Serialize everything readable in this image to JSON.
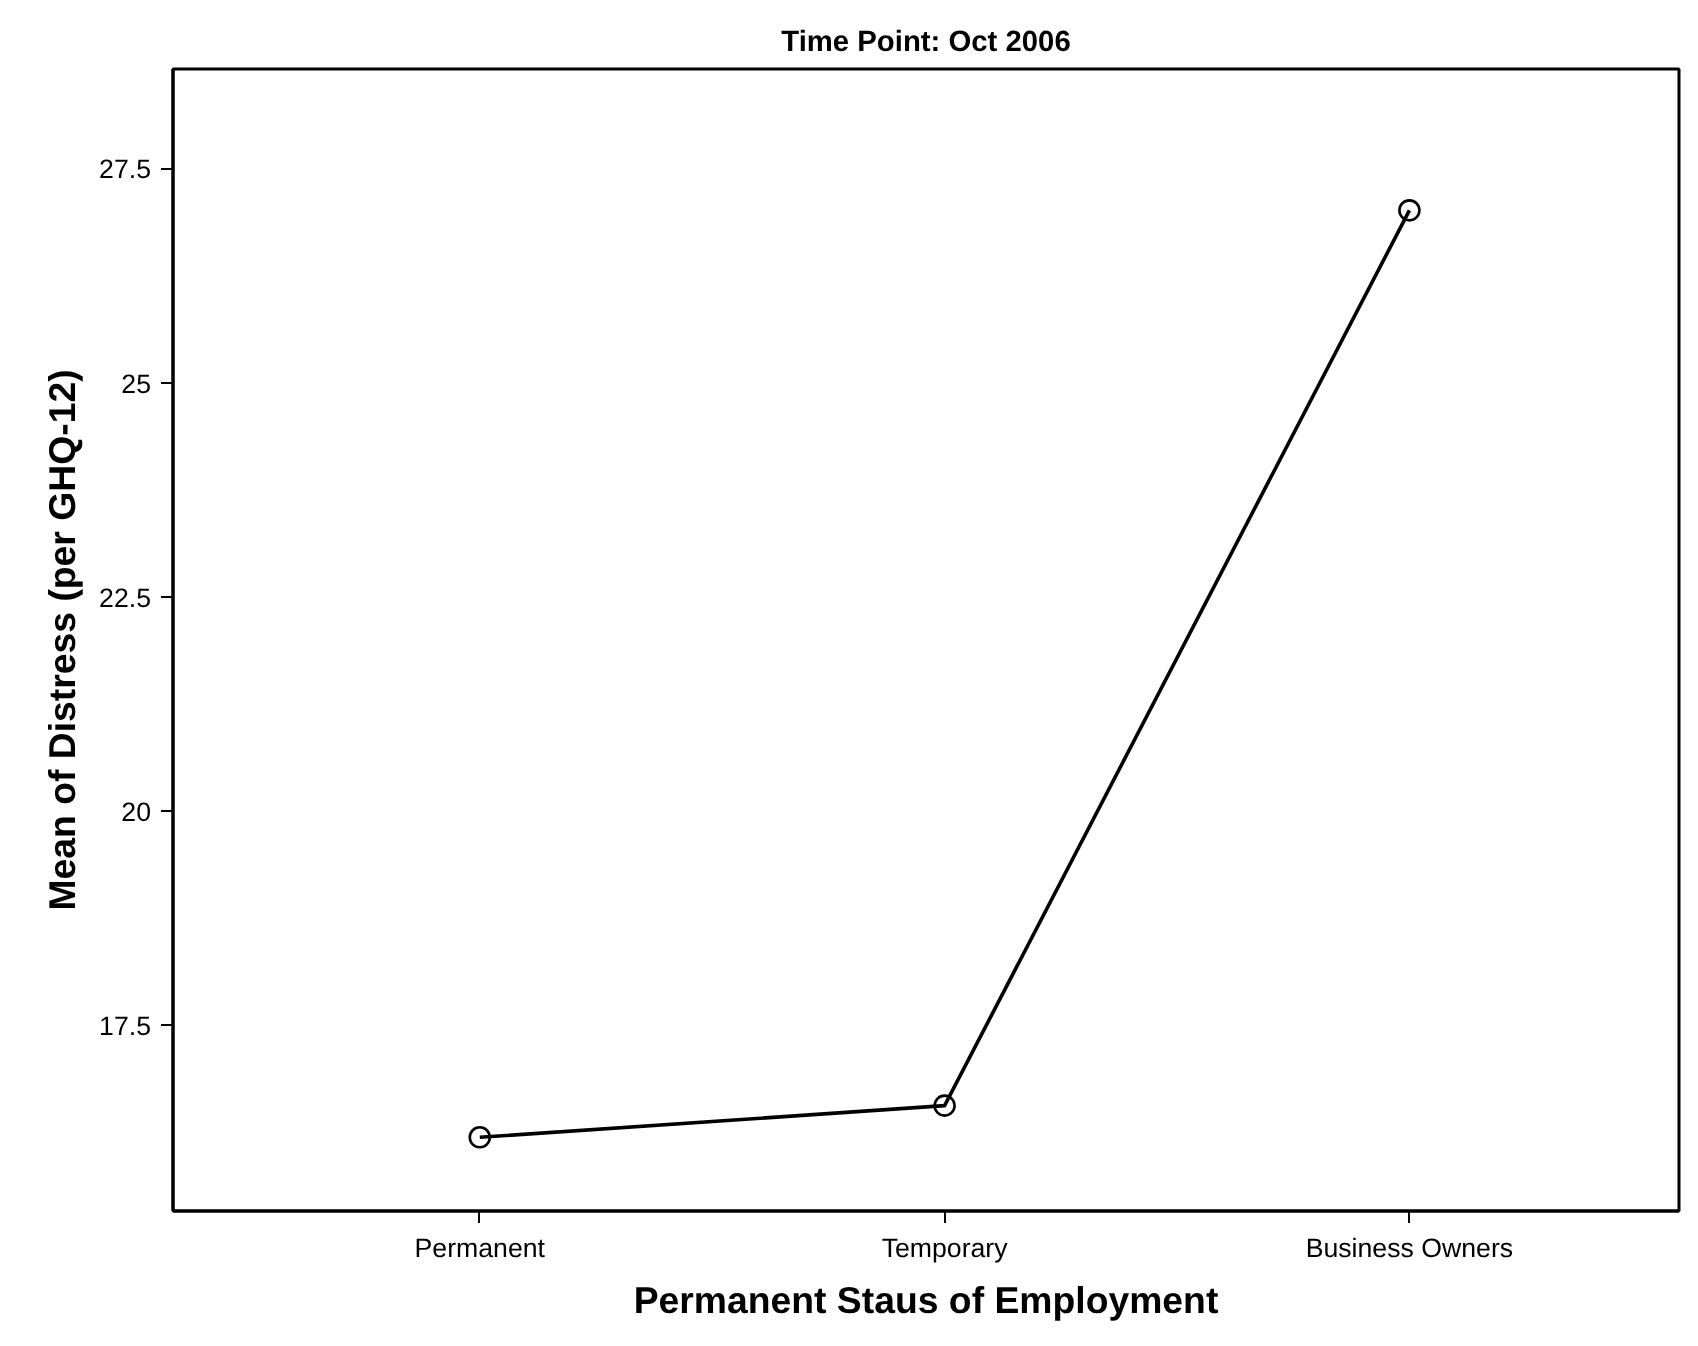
{
  "chart_data": {
    "type": "line",
    "title": "Time Point: Oct 2006",
    "xlabel": "Permanent Staus of Employment",
    "ylabel": "Mean of Distress (per GHQ-12)",
    "categories": [
      "Permanent",
      "Temporary",
      "Business Owners"
    ],
    "series": [
      {
        "color": "#000000",
        "values": [
          16.19,
          16.56,
          27.01
        ]
      }
    ],
    "ylim": [
      15.33,
      28.66
    ],
    "yticks": [
      17.5,
      20,
      22.5,
      25,
      27.5
    ],
    "marker": "circle",
    "line_style": "solid",
    "grid": false
  }
}
